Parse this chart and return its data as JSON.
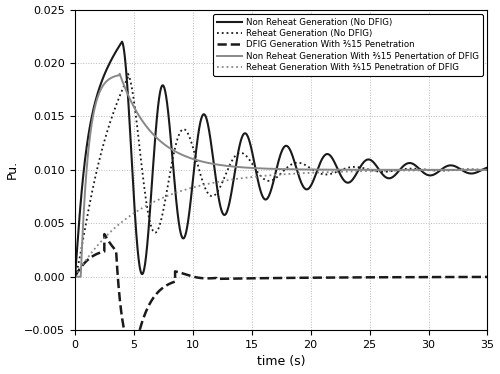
{
  "title": "",
  "xlabel": "time (s)",
  "ylabel": "Pu.",
  "xlim": [
    0,
    35
  ],
  "ylim": [
    -0.005,
    0.025
  ],
  "yticks": [
    -0.005,
    0,
    0.005,
    0.01,
    0.015,
    0.02,
    0.025
  ],
  "xticks": [
    0,
    5,
    10,
    15,
    20,
    25,
    30,
    35
  ],
  "legend": [
    "Non Reheat Generation (No DFIG)",
    "Reheat Generation (No DFIG)",
    "DFIG Generation With ⅗15 Penetration",
    "Non Reheat Generation With ⅗15 Penertation of DFIG",
    "Reheat Generation With ⅗15 Penetration of DFIG"
  ],
  "line_styles": [
    "solid",
    "dotted",
    "dashed",
    "solid",
    "dotted"
  ],
  "line_colors": [
    "#1a1a1a",
    "#1a1a1a",
    "#1a1a1a",
    "#888888",
    "#888888"
  ],
  "line_widths": [
    1.5,
    1.3,
    1.8,
    1.4,
    1.3
  ],
  "background_color": "#ffffff",
  "grid_color": "#bbbbbb"
}
